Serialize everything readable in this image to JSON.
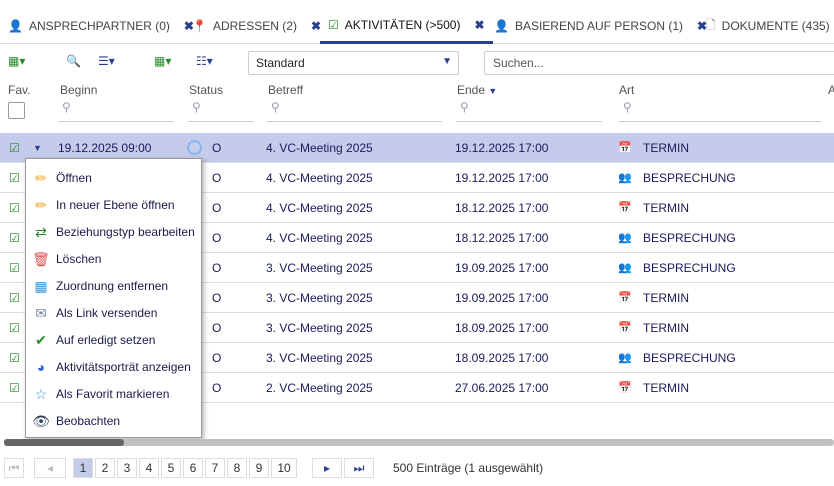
{
  "tabs": [
    {
      "label": "ANSPRECHPARTNER (0)",
      "icon": "person-icon"
    },
    {
      "label": "ADRESSEN (2)",
      "icon": "location-pin-icon"
    },
    {
      "label": "AKTIVITÄTEN (>500)",
      "icon": "clipboard-check-icon",
      "active": true
    },
    {
      "label": "BASIEREND AUF PERSON (1)",
      "icon": "person-icon"
    },
    {
      "label": "DOKUMENTE (435)",
      "icon": "document-icon"
    }
  ],
  "toolbar": {
    "view_select": "Standard",
    "search_placeholder": "Suchen..."
  },
  "columns": {
    "fav": "Fav.",
    "beginn": "Beginn",
    "status": "Status",
    "betreff": "Betreff",
    "ende": "Ende",
    "art": "Art",
    "more": "A"
  },
  "rows": [
    {
      "beginn": "19.12.2025 09:00",
      "status": "O",
      "betreff": "4. VC-Meeting 2025",
      "ende": "19.12.2025 17:00",
      "art": "TERMIN",
      "selected": true
    },
    {
      "beginn": "",
      "status": "O",
      "betreff": "4. VC-Meeting 2025",
      "ende": "19.12.2025 17:00",
      "art": "BESPRECHUNG"
    },
    {
      "beginn": "",
      "status": "O",
      "betreff": "4. VC-Meeting 2025",
      "ende": "18.12.2025 17:00",
      "art": "TERMIN"
    },
    {
      "beginn": "",
      "status": "O",
      "betreff": "4. VC-Meeting 2025",
      "ende": "18.12.2025 17:00",
      "art": "BESPRECHUNG"
    },
    {
      "beginn": "",
      "status": "O",
      "betreff": "3. VC-Meeting 2025",
      "ende": "19.09.2025 17:00",
      "art": "BESPRECHUNG"
    },
    {
      "beginn": "",
      "status": "O",
      "betreff": "3. VC-Meeting 2025",
      "ende": "19.09.2025 17:00",
      "art": "TERMIN"
    },
    {
      "beginn": "",
      "status": "O",
      "betreff": "3. VC-Meeting 2025",
      "ende": "18.09.2025 17:00",
      "art": "TERMIN"
    },
    {
      "beginn": "",
      "status": "O",
      "betreff": "3. VC-Meeting 2025",
      "ende": "18.09.2025 17:00",
      "art": "BESPRECHUNG"
    },
    {
      "beginn": "",
      "status": "O",
      "betreff": "2. VC-Meeting 2025",
      "ende": "27.06.2025 17:00",
      "art": "TERMIN"
    }
  ],
  "context_menu": [
    {
      "label": "Öffnen",
      "icon": "pencil-icon"
    },
    {
      "label": "In neuer Ebene öffnen",
      "icon": "pencil-icon"
    },
    {
      "label": "Beziehungstyp bearbeiten",
      "icon": "swap-arrows-icon"
    },
    {
      "label": "Löschen",
      "icon": "trash-icon"
    },
    {
      "label": "Zuordnung entfernen",
      "icon": "remove-assignment-icon"
    },
    {
      "label": "Als Link versenden",
      "icon": "mail-link-icon"
    },
    {
      "label": "Auf erledigt setzen",
      "icon": "mark-done-icon"
    },
    {
      "label": "Aktivitätsporträt anzeigen",
      "icon": "portrait-report-icon"
    },
    {
      "label": "Als Favorit markieren",
      "icon": "star-icon"
    },
    {
      "label": "Beobachten",
      "icon": "eye-icon"
    }
  ],
  "pagination": {
    "pages": [
      "1",
      "2",
      "3",
      "4",
      "5",
      "6",
      "7",
      "8",
      "9",
      "10"
    ],
    "current": "1",
    "summary": "500 Einträge (1 ausgewählt)"
  },
  "colors": {
    "accent": "#2a3f8f",
    "selected_row": "#c5cbeb"
  }
}
